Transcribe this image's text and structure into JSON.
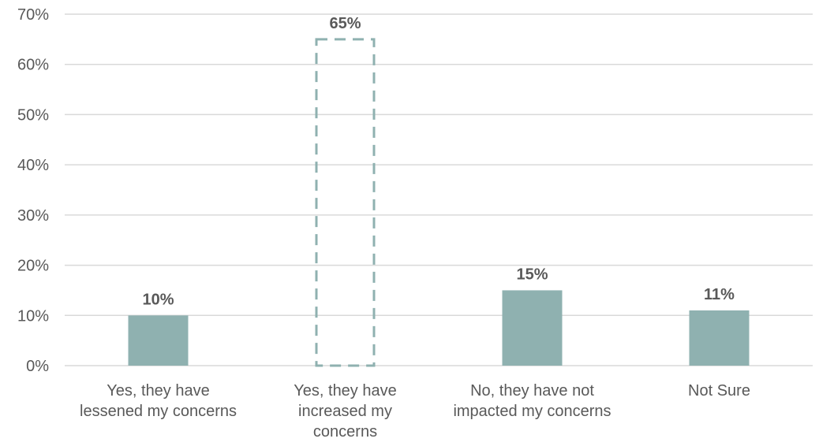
{
  "chart_data": {
    "type": "bar",
    "categories": [
      [
        "Yes, they have",
        "lessened my concerns"
      ],
      [
        "Yes, they have",
        "increased my",
        "concerns"
      ],
      [
        "No, they have not",
        "impacted my concerns"
      ],
      [
        "Not Sure"
      ]
    ],
    "values": [
      10,
      65,
      15,
      11
    ],
    "data_labels": [
      "10%",
      "65%",
      "15%",
      "11%"
    ],
    "highlight_style": [
      "solid",
      "dashed-outline",
      "solid",
      "solid"
    ],
    "y_ticks": [
      "0%",
      "10%",
      "20%",
      "30%",
      "40%",
      "50%",
      "60%",
      "70%"
    ],
    "ylim": [
      0,
      70
    ],
    "grid": true,
    "legend": "none",
    "colors": {
      "bar": "#8fb1b0",
      "outline": "#8fb1b0",
      "grid": "#d9d9d9",
      "text": "#595959"
    },
    "title": "",
    "xlabel": "",
    "ylabel": ""
  }
}
